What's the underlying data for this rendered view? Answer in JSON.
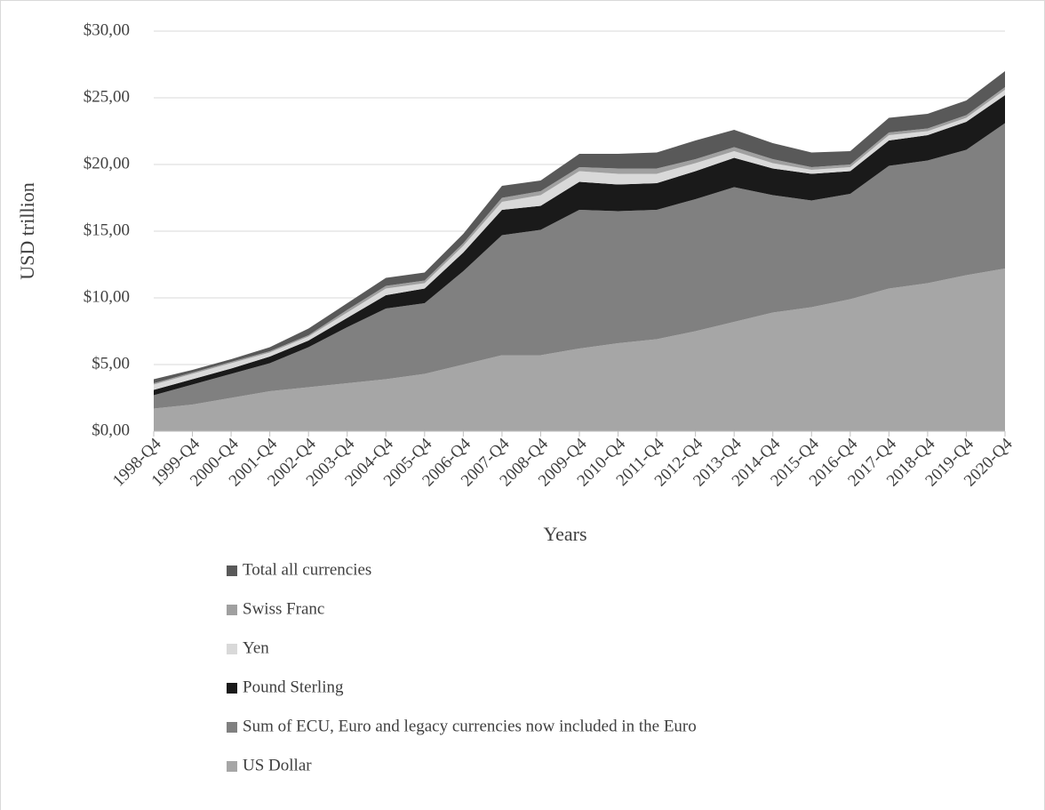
{
  "chart_data": {
    "type": "stacked-area",
    "categories": [
      "1998-Q4",
      "1999-Q4",
      "2000-Q4",
      "2001-Q4",
      "2002-Q4",
      "2003-Q4",
      "2004-Q4",
      "2005-Q4",
      "2006-Q4",
      "2007-Q4",
      "2008-Q4",
      "2009-Q4",
      "2010-Q4",
      "2011-Q4",
      "2012-Q4",
      "2013-Q4",
      "2014-Q4",
      "2015-Q4",
      "2016-Q4",
      "2017-Q4",
      "2018-Q4",
      "2019-Q4",
      "2020-Q4"
    ],
    "xlabel": "Years",
    "ylabel": "USD trillion",
    "ylim": [
      0,
      30
    ],
    "yticks": [
      {
        "value": 0,
        "label": "$0,00"
      },
      {
        "value": 5,
        "label": "$5,00"
      },
      {
        "value": 10,
        "label": "$10,00"
      },
      {
        "value": 15,
        "label": "$15,00"
      },
      {
        "value": 20,
        "label": "$20,00"
      },
      {
        "value": 25,
        "label": "$25,00"
      },
      {
        "value": 30,
        "label": "$30,00"
      }
    ],
    "grid": true,
    "legend": "bottom",
    "series": [
      {
        "name": "US Dollar",
        "color": "#a6a6a6",
        "values": [
          1.7,
          2.0,
          2.5,
          3.0,
          3.3,
          3.6,
          3.9,
          4.3,
          5.0,
          5.7,
          5.7,
          6.2,
          6.6,
          6.9,
          7.5,
          8.2,
          8.9,
          9.3,
          9.9,
          10.7,
          11.1,
          11.7,
          12.2
        ]
      },
      {
        "name": "Sum of ECU, Euro and legacy currencies now included in the Euro",
        "color": "#808080",
        "values": [
          1.0,
          1.5,
          1.8,
          2.1,
          3.0,
          4.2,
          5.3,
          5.3,
          7.0,
          9.0,
          9.4,
          10.4,
          9.9,
          9.7,
          9.9,
          10.1,
          8.8,
          8.0,
          7.9,
          9.2,
          9.2,
          9.4,
          10.9
        ]
      },
      {
        "name": "Pound Sterling",
        "color": "#1a1a1a",
        "values": [
          0.4,
          0.4,
          0.4,
          0.5,
          0.5,
          0.7,
          1.0,
          1.1,
          1.4,
          1.9,
          1.8,
          2.1,
          2.0,
          2.0,
          2.1,
          2.2,
          2.0,
          2.0,
          1.7,
          1.9,
          1.9,
          2.1,
          2.1
        ]
      },
      {
        "name": "Yen",
        "color": "#d9d9d9",
        "values": [
          0.4,
          0.4,
          0.4,
          0.3,
          0.3,
          0.4,
          0.5,
          0.4,
          0.5,
          0.6,
          0.8,
          0.8,
          0.8,
          0.7,
          0.6,
          0.5,
          0.4,
          0.3,
          0.3,
          0.4,
          0.3,
          0.3,
          0.4
        ]
      },
      {
        "name": "Swiss Franc",
        "color": "#a0a0a0",
        "values": [
          0.1,
          0.1,
          0.1,
          0.1,
          0.1,
          0.2,
          0.2,
          0.2,
          0.2,
          0.3,
          0.3,
          0.3,
          0.4,
          0.4,
          0.3,
          0.3,
          0.3,
          0.2,
          0.2,
          0.2,
          0.2,
          0.2,
          0.2
        ]
      },
      {
        "name": "Total all currencies",
        "color": "#595959",
        "values": [
          0.3,
          0.2,
          0.2,
          0.3,
          0.5,
          0.5,
          0.6,
          0.6,
          0.7,
          0.9,
          0.8,
          1.0,
          1.1,
          1.2,
          1.4,
          1.3,
          1.2,
          1.1,
          1.0,
          1.1,
          1.1,
          1.1,
          1.2
        ]
      }
    ]
  }
}
